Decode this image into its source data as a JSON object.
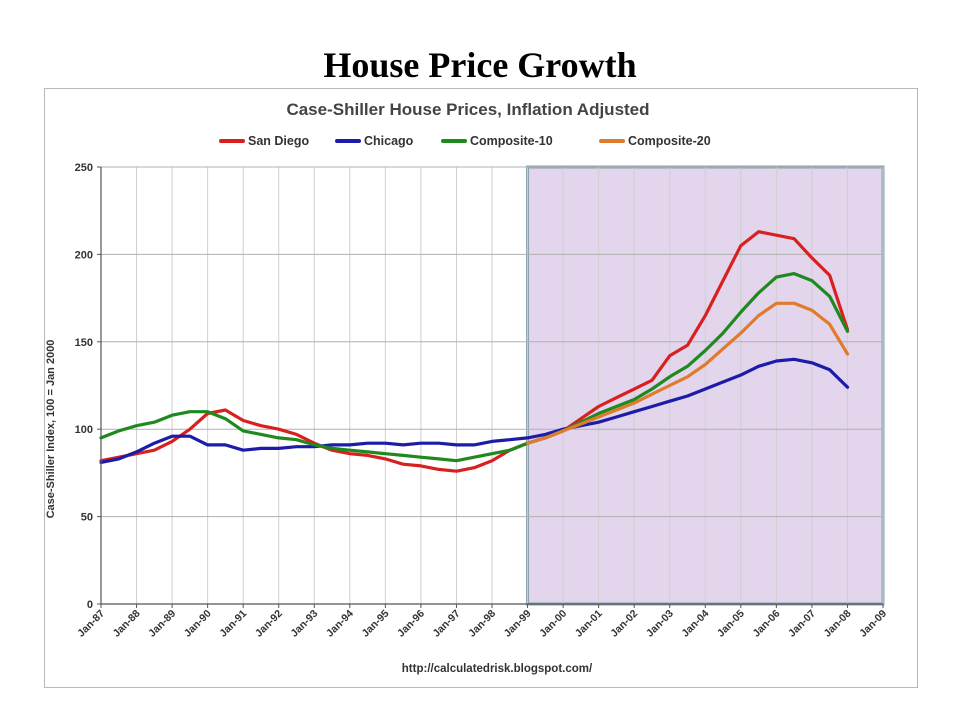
{
  "slide": {
    "title": "House Price Growth"
  },
  "chart_data": {
    "type": "line",
    "title": "Case-Shiller House Prices, Inflation Adjusted",
    "ylabel": "Case-Shiller Index, 100 = Jan 2000",
    "xlabel": "",
    "source": "http://calculatedrisk.blogspot.com/",
    "ylim": [
      0,
      250
    ],
    "yticks": [
      0,
      50,
      100,
      150,
      200,
      250
    ],
    "xlim": [
      1987.0,
      2009.0
    ],
    "xtick_labels": [
      "Jan-87",
      "Jan-88",
      "Jan-89",
      "Jan-90",
      "Jan-91",
      "Jan-92",
      "Jan-93",
      "Jan-94",
      "Jan-95",
      "Jan-96",
      "Jan-97",
      "Jan-98",
      "Jan-99",
      "Jan-00",
      "Jan-01",
      "Jan-02",
      "Jan-03",
      "Jan-04",
      "Jan-05",
      "Jan-06",
      "Jan-07",
      "Jan-08",
      "Jan-09"
    ],
    "grid": "vertical",
    "legend_position": "top",
    "highlight_region": {
      "from": 1999.0,
      "to": 2009.0,
      "color": "#e2d5ec",
      "border": "#8aa3b0"
    },
    "series": [
      {
        "name": "San Diego",
        "color": "#d92020",
        "x": [
          1987.0,
          1987.5,
          1988.0,
          1988.5,
          1989.0,
          1989.5,
          1990.0,
          1990.5,
          1991.0,
          1991.5,
          1992.0,
          1992.5,
          1993.0,
          1993.5,
          1994.0,
          1994.5,
          1995.0,
          1995.5,
          1996.0,
          1996.5,
          1997.0,
          1997.5,
          1998.0,
          1998.5,
          1999.0,
          1999.5,
          2000.0,
          2000.5,
          2001.0,
          2001.5,
          2002.0,
          2002.5,
          2003.0,
          2003.5,
          2004.0,
          2004.5,
          2005.0,
          2005.5,
          2006.0,
          2006.5,
          2007.0,
          2007.5,
          2008.0
        ],
        "y": [
          82,
          84,
          86,
          88,
          93,
          100,
          109,
          111,
          105,
          102,
          100,
          97,
          92,
          88,
          86,
          85,
          83,
          80,
          79,
          77,
          76,
          78,
          82,
          88,
          92,
          95,
          99,
          106,
          113,
          118,
          123,
          128,
          142,
          148,
          165,
          185,
          205,
          213,
          211,
          209,
          198,
          188,
          157
        ]
      },
      {
        "name": "Chicago",
        "color": "#1c1ca8",
        "x": [
          1987.0,
          1987.5,
          1988.0,
          1988.5,
          1989.0,
          1989.5,
          1990.0,
          1990.5,
          1991.0,
          1991.5,
          1992.0,
          1992.5,
          1993.0,
          1993.5,
          1994.0,
          1994.5,
          1995.0,
          1995.5,
          1996.0,
          1996.5,
          1997.0,
          1997.5,
          1998.0,
          1998.5,
          1999.0,
          1999.5,
          2000.0,
          2000.5,
          2001.0,
          2001.5,
          2002.0,
          2002.5,
          2003.0,
          2003.5,
          2004.0,
          2004.5,
          2005.0,
          2005.5,
          2006.0,
          2006.5,
          2007.0,
          2007.5,
          2008.0
        ],
        "y": [
          81,
          83,
          87,
          92,
          96,
          96,
          91,
          91,
          88,
          89,
          89,
          90,
          90,
          91,
          91,
          92,
          92,
          91,
          92,
          92,
          91,
          91,
          93,
          94,
          95,
          97,
          100,
          102,
          104,
          107,
          110,
          113,
          116,
          119,
          123,
          127,
          131,
          136,
          139,
          140,
          138,
          134,
          124
        ]
      },
      {
        "name": "Composite-10",
        "color": "#1e8a1e",
        "x": [
          1987.0,
          1987.5,
          1988.0,
          1988.5,
          1989.0,
          1989.5,
          1990.0,
          1990.5,
          1991.0,
          1991.5,
          1992.0,
          1992.5,
          1993.0,
          1993.5,
          1994.0,
          1994.5,
          1995.0,
          1995.5,
          1996.0,
          1996.5,
          1997.0,
          1997.5,
          1998.0,
          1998.5,
          1999.0,
          1999.5,
          2000.0,
          2000.5,
          2001.0,
          2001.5,
          2002.0,
          2002.5,
          2003.0,
          2003.5,
          2004.0,
          2004.5,
          2005.0,
          2005.5,
          2006.0,
          2006.5,
          2007.0,
          2007.5,
          2008.0
        ],
        "y": [
          95,
          99,
          102,
          104,
          108,
          110,
          110,
          106,
          99,
          97,
          95,
          94,
          91,
          89,
          88,
          87,
          86,
          85,
          84,
          83,
          82,
          84,
          86,
          88,
          92,
          95,
          99,
          104,
          109,
          113,
          117,
          123,
          130,
          136,
          145,
          155,
          167,
          178,
          187,
          189,
          185,
          176,
          156
        ]
      },
      {
        "name": "Composite-20",
        "color": "#e07b2c",
        "x": [
          1999.0,
          1999.5,
          2000.0,
          2000.5,
          2001.0,
          2001.5,
          2002.0,
          2002.5,
          2003.0,
          2003.5,
          2004.0,
          2004.5,
          2005.0,
          2005.5,
          2006.0,
          2006.5,
          2007.0,
          2007.5,
          2008.0
        ],
        "y": [
          92,
          95,
          99,
          103,
          107,
          111,
          115,
          120,
          125,
          130,
          137,
          146,
          155,
          165,
          172,
          172,
          168,
          160,
          143
        ]
      }
    ]
  }
}
